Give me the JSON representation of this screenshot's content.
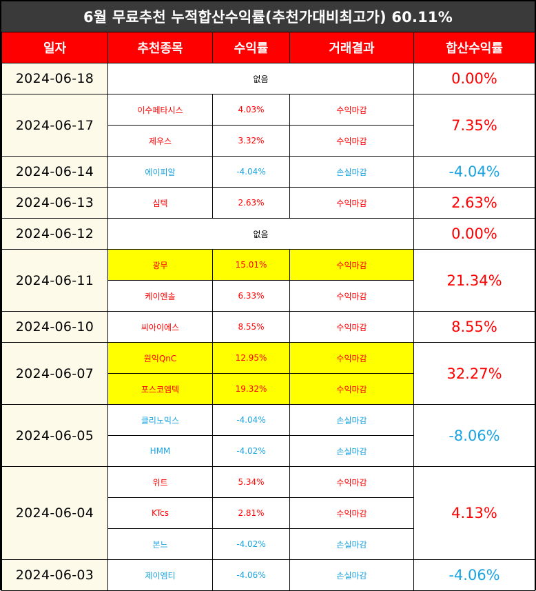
{
  "title": "6월 무료추천 누적합산수익률(추천가대비최고가) 60.11%",
  "headers": [
    "일자",
    "추천종목",
    "수익률",
    "거래결과",
    "합산수익률"
  ],
  "colors": {
    "header_bg": "#ff0000",
    "title_bg": "#3a3a3a",
    "gain": "#ff0000",
    "loss": "#1aa3e0",
    "highlight": "#ffff00",
    "date_bg": "#fdfaea"
  },
  "rows": [
    {
      "date": "2024-06-18",
      "none_label": "없음",
      "total": "0.00%",
      "total_color": "red"
    },
    {
      "date": "2024-06-17",
      "total": "7.35%",
      "total_color": "red",
      "items": [
        {
          "name": "이수페타시스",
          "rate": "4.03%",
          "result": "수익마감",
          "color": "red",
          "hl": false
        },
        {
          "name": "제우스",
          "rate": "3.32%",
          "result": "수익마감",
          "color": "red",
          "hl": false
        }
      ]
    },
    {
      "date": "2024-06-14",
      "total": "-4.04%",
      "total_color": "blue",
      "items": [
        {
          "name": "에이피알",
          "rate": "-4.04%",
          "result": "손실마감",
          "color": "blue",
          "hl": false
        }
      ]
    },
    {
      "date": "2024-06-13",
      "total": "2.63%",
      "total_color": "red",
      "items": [
        {
          "name": "심텍",
          "rate": "2.63%",
          "result": "수익마감",
          "color": "red",
          "hl": false
        }
      ]
    },
    {
      "date": "2024-06-12",
      "none_label": "없음",
      "total": "0.00%",
      "total_color": "red"
    },
    {
      "date": "2024-06-11",
      "total": "21.34%",
      "total_color": "red",
      "items": [
        {
          "name": "광무",
          "rate": "15.01%",
          "result": "수익마감",
          "color": "red",
          "hl": true
        },
        {
          "name": "케이엔솔",
          "rate": "6.33%",
          "result": "수익마감",
          "color": "red",
          "hl": false
        }
      ]
    },
    {
      "date": "2024-06-10",
      "total": "8.55%",
      "total_color": "red",
      "items": [
        {
          "name": "씨아이에스",
          "rate": "8.55%",
          "result": "수익마감",
          "color": "red",
          "hl": false
        }
      ]
    },
    {
      "date": "2024-06-07",
      "total": "32.27%",
      "total_color": "red",
      "items": [
        {
          "name": "원익QnC",
          "rate": "12.95%",
          "result": "수익마감",
          "color": "red",
          "hl": true
        },
        {
          "name": "포스코엠텍",
          "rate": "19.32%",
          "result": "수익마감",
          "color": "red",
          "hl": true
        }
      ]
    },
    {
      "date": "2024-06-05",
      "total": "-8.06%",
      "total_color": "blue",
      "items": [
        {
          "name": "클리노믹스",
          "rate": "-4.04%",
          "result": "손실마감",
          "color": "blue",
          "hl": false
        },
        {
          "name": "HMM",
          "rate": "-4.02%",
          "result": "손실마감",
          "color": "blue",
          "hl": false
        }
      ]
    },
    {
      "date": "2024-06-04",
      "total": "4.13%",
      "total_color": "red",
      "items": [
        {
          "name": "위트",
          "rate": "5.34%",
          "result": "수익마감",
          "color": "red",
          "hl": false
        },
        {
          "name": "KTcs",
          "rate": "2.81%",
          "result": "수익마감",
          "color": "red",
          "hl": false
        },
        {
          "name": "본느",
          "rate": "-4.02%",
          "result": "손실마감",
          "color": "blue",
          "hl": false
        }
      ]
    },
    {
      "date": "2024-06-03",
      "total": "-4.06%",
      "total_color": "blue",
      "items": [
        {
          "name": "제이엠티",
          "rate": "-4.06%",
          "result": "손실마감",
          "color": "blue",
          "hl": false
        }
      ]
    }
  ]
}
